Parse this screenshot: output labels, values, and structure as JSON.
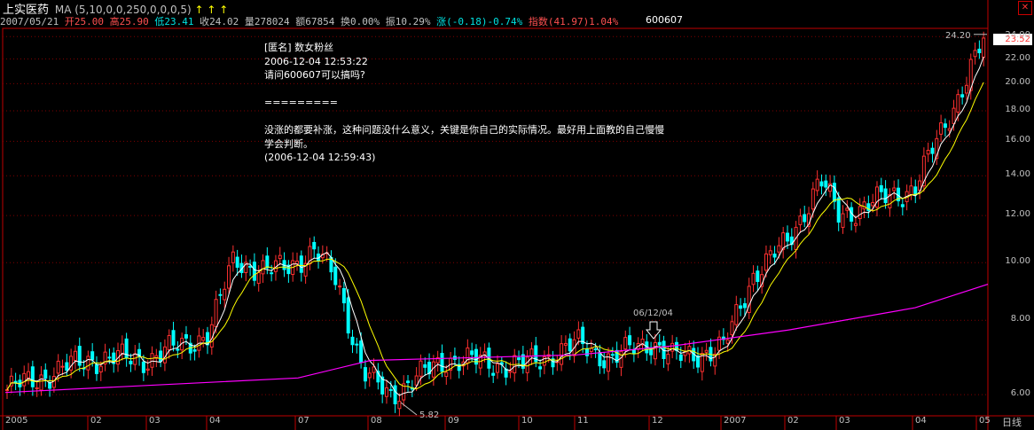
{
  "header": {
    "stock_name": "上实医药",
    "ma_label": "MA (5,10,0,0,250,0,0,0,5)",
    "ma_arrows": "↑ ↑ ↑",
    "date": "2007/05/21",
    "open": "开25.00",
    "high": "高25.90",
    "low": "低23.41",
    "close": "收24.02",
    "volume": "量278024",
    "amount": "额67854",
    "turnover": "换0.00%",
    "amplitude": "振10.29%",
    "change": "涨(-0.18)-0.74%",
    "index_label": "指数(41.97)1.04%",
    "code": "600607"
  },
  "annotation": {
    "author": "[匿名] 数女粉丝",
    "time1": "2006-12-04 12:53:22",
    "question": "请问600607可以搞吗?",
    "separator": "=========",
    "reply_line1": "没涨的都要补涨，这种问题没什么意义，关键是你自己的实际情况。最好用上面教的自己慢慢",
    "reply_line2": "学会判断。",
    "time2": "(2006-12-04 12:59:43)"
  },
  "price_tag": "23.52",
  "period_label": "日线",
  "colors": {
    "up": "#ff3030",
    "down": "#00ffff",
    "ma5": "#ffffff",
    "ma10": "#ffff00",
    "ma250": "#ff00ff",
    "frame": "#c00000"
  },
  "chart_data": {
    "type": "candlestick",
    "title": "",
    "scale": "log",
    "ylim": [
      5.8,
      24.6
    ],
    "yticks": [
      "24.00",
      "22.00",
      "20.00",
      "18.00",
      "16.00",
      "14.00",
      "12.00",
      "10.00",
      "8.00",
      "6.00"
    ],
    "ytick_values": [
      24,
      22,
      20,
      18,
      16,
      14,
      12,
      10,
      8,
      6
    ],
    "xtick_labels": [
      "2005",
      "02",
      "03",
      "04",
      "07",
      "08",
      "09",
      "10",
      "11",
      "12",
      "2007",
      "02",
      "03",
      "04",
      "05"
    ],
    "annotations": [
      {
        "text": "5.82",
        "x": "08",
        "y": 5.82
      },
      {
        "text": "06/12/04",
        "x": "12",
        "y": 7.4
      },
      {
        "text": "24.20",
        "x": "05",
        "y": 24.2
      }
    ],
    "series": [
      {
        "name": "close",
        "points": [
          [
            "2005-01",
            6.1
          ],
          [
            "2005-02",
            6.9
          ],
          [
            "2005-03",
            6.9
          ],
          [
            "2005-04",
            7.6
          ],
          [
            "2005-04-late",
            10.2
          ],
          [
            "2005-05",
            9.6
          ],
          [
            "2005-06",
            10.4
          ],
          [
            "2005-07",
            9.4
          ],
          [
            "2005-08",
            6.5
          ],
          [
            "2005-08-late",
            6.0
          ],
          [
            "2005-09",
            6.9
          ],
          [
            "2005-10",
            6.7
          ],
          [
            "2005-11",
            7.3
          ],
          [
            "2005-12",
            6.9
          ],
          [
            "2006-12-04",
            7.4
          ],
          [
            "2006-12",
            6.9
          ],
          [
            "2007-01",
            7.2
          ],
          [
            "2007-01-late",
            9.6
          ],
          [
            "2007-02",
            10.8
          ],
          [
            "2007-02-late",
            13.8
          ],
          [
            "2007-03",
            12.0
          ],
          [
            "2007-04",
            13.4
          ],
          [
            "2007-04-late",
            16.4
          ],
          [
            "2007-05",
            24.02
          ]
        ]
      },
      {
        "name": "MA250",
        "points": [
          [
            "2005-01",
            6.05
          ],
          [
            "2005-07",
            6.4
          ],
          [
            "2005-08",
            6.85
          ],
          [
            "2005-12",
            7.0
          ],
          [
            "2006-12",
            7.25
          ],
          [
            "2007-02",
            7.7
          ],
          [
            "2007-04",
            8.4
          ],
          [
            "2007-05",
            9.2
          ]
        ]
      }
    ]
  }
}
